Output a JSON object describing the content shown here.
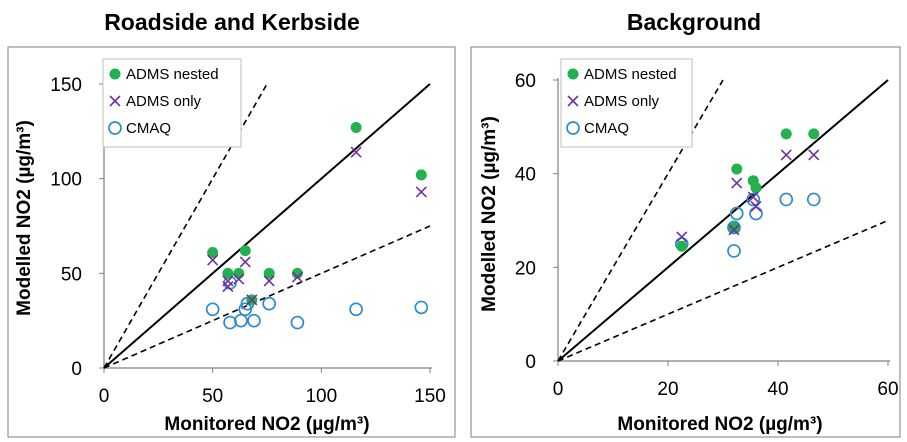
{
  "chart_data": [
    {
      "type": "scatter",
      "title": "Roadside and Kerbside",
      "xlabel": "Monitored NO2 (µg/m³)",
      "ylabel": "Modelled NO2 (µg/m³)",
      "xlim": [
        0,
        150
      ],
      "ylim": [
        0,
        150
      ],
      "xticks": [
        "0",
        "50",
        "100",
        "150"
      ],
      "yticks": [
        "0",
        "50",
        "100",
        "150"
      ],
      "grid": false,
      "legend_position": "top-left",
      "reference_lines": [
        {
          "style": "solid",
          "slope": 1
        },
        {
          "style": "dashed",
          "slope": 2
        },
        {
          "style": "dashed",
          "slope": 0.5
        }
      ],
      "series": [
        {
          "name": "ADMS nested",
          "marker": "filled-circle",
          "color": "#22b14c",
          "points": [
            [
              50,
              61
            ],
            [
              57,
              50
            ],
            [
              62,
              50
            ],
            [
              65,
              62
            ],
            [
              68,
              36
            ],
            [
              76,
              50
            ],
            [
              89,
              50
            ],
            [
              116,
              127
            ],
            [
              146,
              102
            ]
          ]
        },
        {
          "name": "ADMS only",
          "marker": "x",
          "color": "#7030a0",
          "points": [
            [
              50,
              57
            ],
            [
              57,
              46
            ],
            [
              57,
              43
            ],
            [
              62,
              47
            ],
            [
              65,
              56
            ],
            [
              68,
              36
            ],
            [
              76,
              46
            ],
            [
              89,
              48
            ],
            [
              116,
              114
            ],
            [
              146,
              93
            ]
          ]
        },
        {
          "name": "CMAQ",
          "marker": "open-circle",
          "color": "#2e8bd0",
          "points": [
            [
              50,
              31
            ],
            [
              58,
              24
            ],
            [
              58,
              45
            ],
            [
              63,
              25
            ],
            [
              65,
              31
            ],
            [
              66,
              34
            ],
            [
              69,
              25
            ],
            [
              76,
              34
            ],
            [
              89,
              24
            ],
            [
              116,
              31
            ],
            [
              146,
              32
            ]
          ]
        }
      ]
    },
    {
      "type": "scatter",
      "title": "Background",
      "xlabel": "Monitored NO2 (µg/m³)",
      "ylabel": "Modelled NO2 (µg/m³)",
      "xlim": [
        0,
        60
      ],
      "ylim": [
        0,
        60
      ],
      "xticks": [
        "0",
        "20",
        "40",
        "60"
      ],
      "yticks": [
        "0",
        "20",
        "40",
        "60"
      ],
      "grid": false,
      "legend_position": "top-left",
      "reference_lines": [
        {
          "style": "solid",
          "slope": 1
        },
        {
          "style": "dashed",
          "slope": 2
        },
        {
          "style": "dashed",
          "slope": 0.5
        }
      ],
      "series": [
        {
          "name": "ADMS nested",
          "marker": "filled-circle",
          "color": "#22b14c",
          "points": [
            [
              22.5,
              24.5
            ],
            [
              32,
              28.5
            ],
            [
              32.5,
              41
            ],
            [
              35.5,
              38.5
            ],
            [
              36,
              37
            ],
            [
              41.5,
              48.5
            ],
            [
              46.5,
              48.5
            ]
          ]
        },
        {
          "name": "ADMS only",
          "marker": "x",
          "color": "#7030a0",
          "points": [
            [
              22.5,
              26.5
            ],
            [
              32,
              28
            ],
            [
              32.5,
              38
            ],
            [
              35.5,
              35
            ],
            [
              36,
              33
            ],
            [
              41.5,
              44
            ],
            [
              46.5,
              44
            ]
          ]
        },
        {
          "name": "CMAQ",
          "marker": "open-circle",
          "color": "#2e8bd0",
          "points": [
            [
              22.5,
              25
            ],
            [
              32,
              23.5
            ],
            [
              32,
              28.5
            ],
            [
              32.5,
              31.5
            ],
            [
              35.5,
              34.5
            ],
            [
              36,
              31.5
            ],
            [
              41.5,
              34.5
            ],
            [
              46.5,
              34.5
            ]
          ]
        }
      ]
    }
  ]
}
